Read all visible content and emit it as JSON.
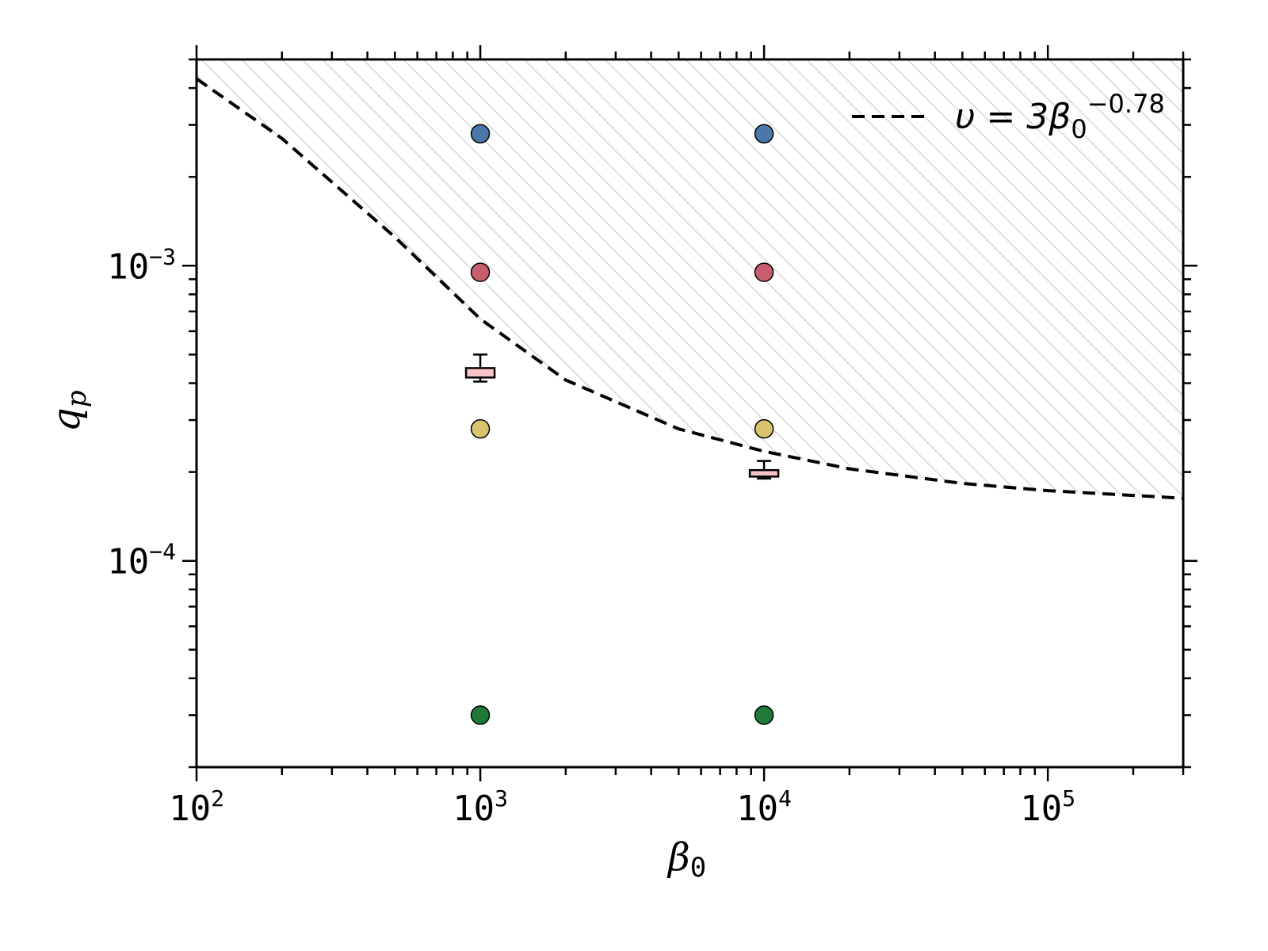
{
  "chart_data": {
    "type": "scatter",
    "xscale": "log",
    "yscale": "log",
    "xlim": [
      100,
      300000
    ],
    "ylim": [
      2e-05,
      0.005
    ],
    "xlabel": "β",
    "xlabel_sub": "0",
    "ylabel": "q",
    "ylabel_sub": "p",
    "x_ticks": [
      {
        "base": "10",
        "exp": "2",
        "value": 100
      },
      {
        "base": "10",
        "exp": "3",
        "value": 1000
      },
      {
        "base": "10",
        "exp": "4",
        "value": 10000
      },
      {
        "base": "10",
        "exp": "5",
        "value": 100000
      }
    ],
    "y_ticks": [
      {
        "base": "10",
        "exp": "−3",
        "value": 0.001
      },
      {
        "base": "10",
        "exp": "−4",
        "value": 0.0001
      }
    ],
    "grid": false,
    "hatched_region": "above the dashed curve",
    "legend": {
      "placement": "top-right",
      "label_main": "υ = 3β",
      "label_sub": "0",
      "label_sup": "−0.78"
    },
    "curve": {
      "style": "dashed",
      "color": "#000000",
      "points": [
        {
          "x": 100,
          "y": 0.0043
        },
        {
          "x": 200,
          "y": 0.0027
        },
        {
          "x": 500,
          "y": 0.00125
        },
        {
          "x": 1000,
          "y": 0.00066
        },
        {
          "x": 2000,
          "y": 0.00041
        },
        {
          "x": 5000,
          "y": 0.00028
        },
        {
          "x": 10000,
          "y": 0.000235
        },
        {
          "x": 20000,
          "y": 0.000205
        },
        {
          "x": 50000,
          "y": 0.000183
        },
        {
          "x": 100000,
          "y": 0.000173
        },
        {
          "x": 300000,
          "y": 0.000163
        }
      ]
    },
    "points": [
      {
        "x": 1000,
        "y": 0.0028,
        "color": "#4a78a8"
      },
      {
        "x": 10000,
        "y": 0.0028,
        "color": "#4a78a8"
      },
      {
        "x": 1000,
        "y": 0.00095,
        "color": "#c95f6e"
      },
      {
        "x": 10000,
        "y": 0.00095,
        "color": "#c95f6e"
      },
      {
        "x": 1000,
        "y": 0.00028,
        "color": "#d8c36e"
      },
      {
        "x": 10000,
        "y": 0.00028,
        "color": "#d8c36e"
      },
      {
        "x": 1000,
        "y": 3e-05,
        "color": "#1f7a3a"
      },
      {
        "x": 10000,
        "y": 3e-05,
        "color": "#1f7a3a"
      }
    ],
    "boxes": [
      {
        "x": 1000,
        "whisker_low": 0.000405,
        "q1": 0.000418,
        "q3": 0.00045,
        "whisker_high": 0.0005,
        "color": "#f7c2c8"
      },
      {
        "x": 10000,
        "whisker_low": 0.00019,
        "q1": 0.000193,
        "q3": 0.000203,
        "whisker_high": 0.000218,
        "color": "#f7c2c8"
      }
    ]
  }
}
